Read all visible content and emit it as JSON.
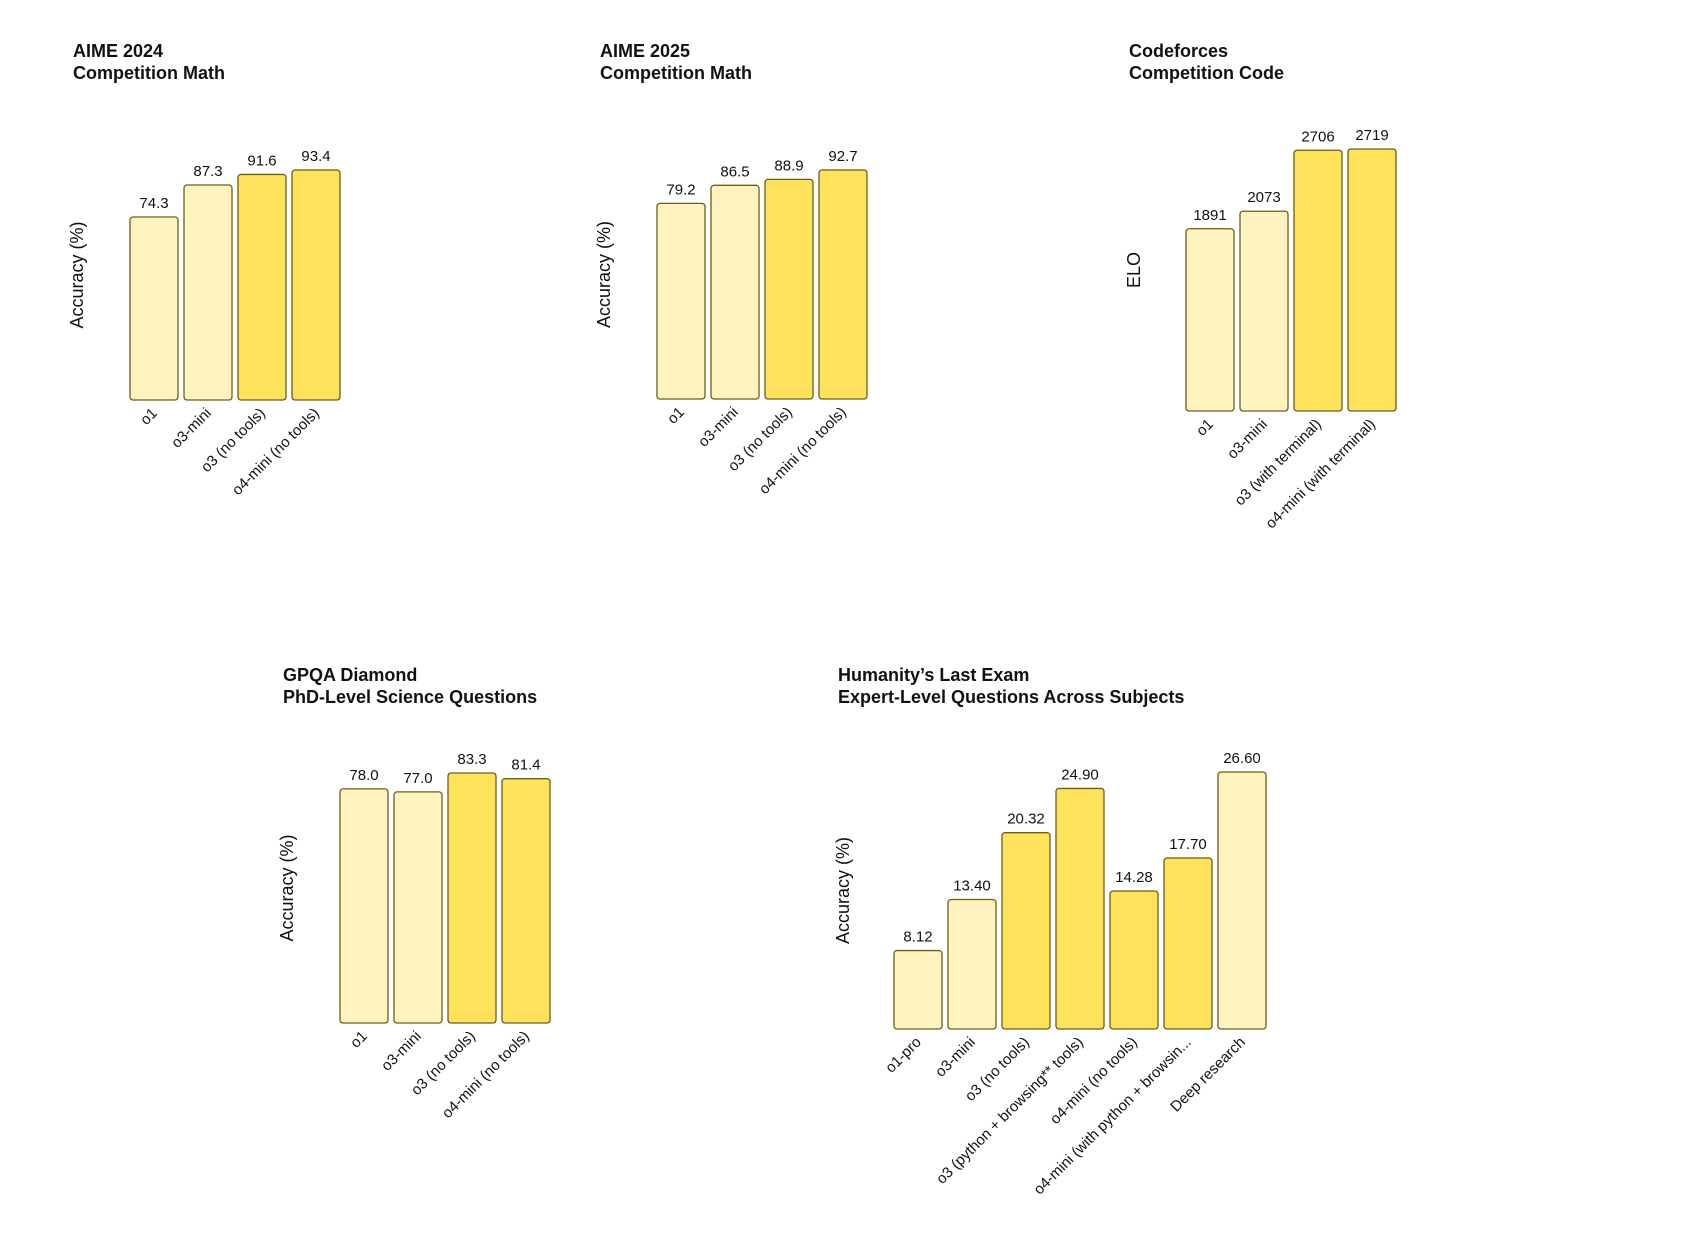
{
  "colors": {
    "light": "#FFF3BF",
    "dark": "#FFE25C",
    "stroke": "#6B5E1A",
    "text": "#111111"
  },
  "chart_data": [
    {
      "type": "bar",
      "title": "AIME 2024",
      "subtitle": "Competition Math",
      "ylabel": "Accuracy (%)",
      "categories": [
        "o1",
        "o3-mini",
        "o3 (no tools)",
        "o4-mini (no tools)"
      ],
      "values": [
        74.3,
        87.3,
        91.6,
        93.4
      ],
      "value_labels": [
        "74.3",
        "87.3",
        "91.6",
        "93.4"
      ],
      "highlight": [
        false,
        false,
        true,
        true
      ],
      "ylim": [
        0,
        100
      ]
    },
    {
      "type": "bar",
      "title": "AIME 2025",
      "subtitle": "Competition Math",
      "ylabel": "Accuracy (%)",
      "categories": [
        "o1",
        "o3-mini",
        "o3 (no tools)",
        "o4-mini (no tools)"
      ],
      "values": [
        79.2,
        86.5,
        88.9,
        92.7
      ],
      "value_labels": [
        "79.2",
        "86.5",
        "88.9",
        "92.7"
      ],
      "highlight": [
        false,
        false,
        true,
        true
      ],
      "ylim": [
        0,
        100
      ]
    },
    {
      "type": "bar",
      "title": "Codeforces",
      "subtitle": "Competition Code",
      "ylabel": "ELO",
      "categories": [
        "o1",
        "o3-mini",
        "o3 (with terminal)",
        "o4-mini (with terminal)"
      ],
      "values": [
        1891,
        2073,
        2706,
        2719
      ],
      "value_labels": [
        "1891",
        "2073",
        "2706",
        "2719"
      ],
      "highlight": [
        false,
        false,
        true,
        true
      ],
      "ylim": [
        0,
        2719
      ]
    },
    {
      "type": "bar",
      "title": "GPQA Diamond",
      "subtitle": "PhD-Level Science Questions",
      "ylabel": "Accuracy (%)",
      "categories": [
        "o1",
        "o3-mini",
        "o3 (no tools)",
        "o4-mini (no tools)"
      ],
      "values": [
        78.0,
        77.0,
        83.3,
        81.4
      ],
      "value_labels": [
        "78.0",
        "77.0",
        "83.3",
        "81.4"
      ],
      "highlight": [
        false,
        false,
        true,
        true
      ],
      "ylim": [
        0,
        83.3
      ]
    },
    {
      "type": "bar",
      "title": "Humanity’s Last Exam",
      "subtitle": "Expert-Level Questions Across Subjects",
      "ylabel": "Accuracy (%)",
      "categories": [
        "o1-pro",
        "o3-mini",
        "o3 (no tools)",
        "o3 (python + browsing** tools)",
        "o4-mini (no tools)",
        "o4-mini (with python + browsin...",
        "Deep research"
      ],
      "values": [
        8.12,
        13.4,
        20.32,
        24.9,
        14.28,
        17.7,
        26.6
      ],
      "value_labels": [
        "8.12",
        "13.40",
        "20.32",
        "24.90",
        "14.28",
        "17.70",
        "26.60"
      ],
      "highlight": [
        false,
        false,
        true,
        true,
        true,
        true,
        false
      ],
      "ylim": [
        0,
        26.6
      ]
    }
  ]
}
